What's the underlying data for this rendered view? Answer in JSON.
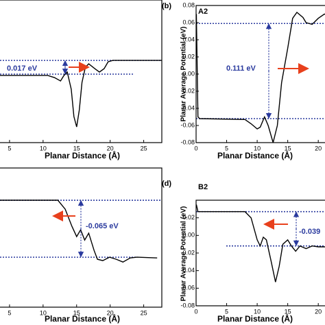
{
  "chart_data": [
    {
      "type": "line",
      "xlabel": "Planar Distance (Å)",
      "annotation": "0.017 eV",
      "xlim": [
        0,
        27.7
      ],
      "ylim": [
        -0.085,
        0.092
      ],
      "xticks": [
        5,
        10,
        15,
        20,
        25
      ],
      "color": "#000000",
      "hline_color": "#2a3a9e",
      "hlines": [
        0.017,
        0
      ],
      "x": [
        0.5,
        10.7,
        11.7,
        12.6,
        13.1,
        13.6,
        14.2,
        14.6,
        15.0,
        15.4,
        15.8,
        16.3,
        16.8,
        17.7,
        18.4,
        19.1,
        19.7,
        20.4,
        27.7
      ],
      "values": [
        -0.0017,
        -0.0017,
        -0.0043,
        -0.0085,
        -0.0017,
        0.0026,
        -0.0187,
        -0.0527,
        -0.0655,
        -0.0442,
        -0.0102,
        0.0085,
        0.0128,
        0.0068,
        0.0026,
        0.0068,
        0.0153,
        0.017,
        0.017
      ]
    },
    {
      "type": "line",
      "panel_label": "(b)",
      "tag": "A2",
      "xlabel": "Planar Distance (Å)",
      "ylabel": "Planar Average Potential (eV)",
      "annotation": "0.111 eV",
      "xlim": [
        0,
        22
      ],
      "ylim": [
        -0.08,
        0.08
      ],
      "xticks": [
        0,
        5,
        10,
        15,
        20
      ],
      "yticks": [
        0.08,
        0.06,
        0.04,
        0.02,
        {
          "value": 0,
          "label": "0.00"
        },
        -0.02,
        -0.04,
        -0.06,
        -0.08
      ],
      "color": "#000000",
      "hline_color": "#2a3a9e",
      "hlines": [
        0.059,
        -0.052
      ],
      "x": [
        0.05,
        0.3,
        0.6,
        8,
        9,
        10,
        10.5,
        11.2,
        11.8,
        12.6,
        13.3,
        14,
        15,
        15.8,
        16.5,
        17.5,
        18,
        19,
        20,
        21,
        22
      ],
      "values": [
        0.07,
        -0.05,
        -0.052,
        -0.053,
        -0.058,
        -0.064,
        -0.062,
        -0.05,
        -0.06,
        -0.08,
        -0.06,
        -0.01,
        0.03,
        0.065,
        0.072,
        0.066,
        0.06,
        0.058,
        0.065,
        0.07,
        0.068
      ]
    },
    {
      "type": "line",
      "xlabel": "Planar Distance (Å)",
      "annotation": "-0.065 eV",
      "xlim": [
        0,
        27.7
      ],
      "ylim": [
        -0.122,
        0.0368
      ],
      "xticks": [
        5,
        10,
        15,
        20,
        25
      ],
      "color": "#000000",
      "hline_color": "#2a3a9e",
      "hlines": [
        0,
        -0.065
      ],
      "x": [
        0.5,
        12.2,
        13.3,
        14.3,
        15.0,
        15.6,
        16.2,
        16.8,
        17.6,
        18.1,
        18.9,
        19.9,
        20.9,
        21.9,
        23.0,
        24.0,
        27.0
      ],
      "values": [
        0,
        0,
        -0.0102,
        -0.0298,
        -0.0415,
        -0.0337,
        -0.0454,
        -0.0376,
        -0.0572,
        -0.0673,
        -0.0689,
        -0.065,
        -0.0673,
        -0.0705,
        -0.0658,
        -0.065,
        -0.0658
      ]
    },
    {
      "type": "line",
      "panel_label": "(d)",
      "tag": "B2",
      "xlabel": "Planar Distance (Å)",
      "ylabel": "Planar Average Potential (eV)",
      "annotation": "-0.039",
      "xlim": [
        0,
        22
      ],
      "ylim": [
        -0.08,
        0.04
      ],
      "xticks": [
        0,
        5,
        10,
        15,
        20
      ],
      "yticks": [
        0.02,
        {
          "value": 0,
          "label": "0.00"
        },
        -0.02,
        -0.04,
        -0.06,
        -0.08
      ],
      "color": "#000000",
      "hline_color": "#2a3a9e",
      "hlines": [
        0.027,
        -0.012
      ],
      "x": [
        0.05,
        0.3,
        8,
        9,
        10,
        10.5,
        11,
        11.5,
        12.3,
        13,
        13.6,
        14.2,
        15,
        15.6,
        16.3,
        17,
        18,
        19,
        20,
        22
      ],
      "values": [
        0.035,
        0.027,
        0.027,
        0.02,
        -0.005,
        -0.012,
        -0.002,
        -0.005,
        -0.03,
        -0.053,
        -0.035,
        -0.01,
        -0.005,
        -0.012,
        -0.018,
        -0.012,
        -0.015,
        -0.012,
        -0.013,
        -0.013
      ]
    }
  ]
}
